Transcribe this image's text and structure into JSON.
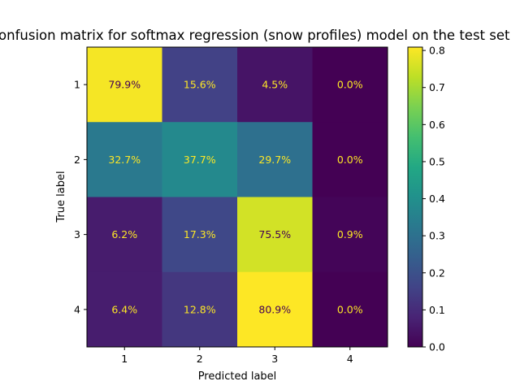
{
  "chart_data": {
    "type": "heatmap",
    "title": "Confusion matrix for softmax regression (snow profiles) model on the test set",
    "xlabel": "Predicted label",
    "ylabel": "True label",
    "x_categories": [
      "1",
      "2",
      "3",
      "4"
    ],
    "y_categories": [
      "1",
      "2",
      "3",
      "4"
    ],
    "values": [
      [
        0.799,
        0.156,
        0.045,
        0.0
      ],
      [
        0.327,
        0.377,
        0.297,
        0.0
      ],
      [
        0.062,
        0.173,
        0.755,
        0.009
      ],
      [
        0.064,
        0.128,
        0.809,
        0.0
      ]
    ],
    "cell_labels": [
      [
        "79.9%",
        "15.6%",
        "4.5%",
        "0.0%"
      ],
      [
        "32.7%",
        "37.7%",
        "29.7%",
        "0.0%"
      ],
      [
        "6.2%",
        "17.3%",
        "75.5%",
        "0.9%"
      ],
      [
        "6.4%",
        "12.8%",
        "80.9%",
        "0.0%"
      ]
    ],
    "colorbar": {
      "colormap": "viridis",
      "range": [
        0.0,
        0.809
      ],
      "ticks": [
        0.0,
        0.1,
        0.2,
        0.3,
        0.4,
        0.5,
        0.6,
        0.7,
        0.8
      ],
      "tick_labels": [
        "0.0",
        "0.1",
        "0.2",
        "0.3",
        "0.4",
        "0.5",
        "0.6",
        "0.7",
        "0.8"
      ]
    },
    "label_colors": {
      "on_dark": "#fde725",
      "on_light": "#440154"
    }
  }
}
